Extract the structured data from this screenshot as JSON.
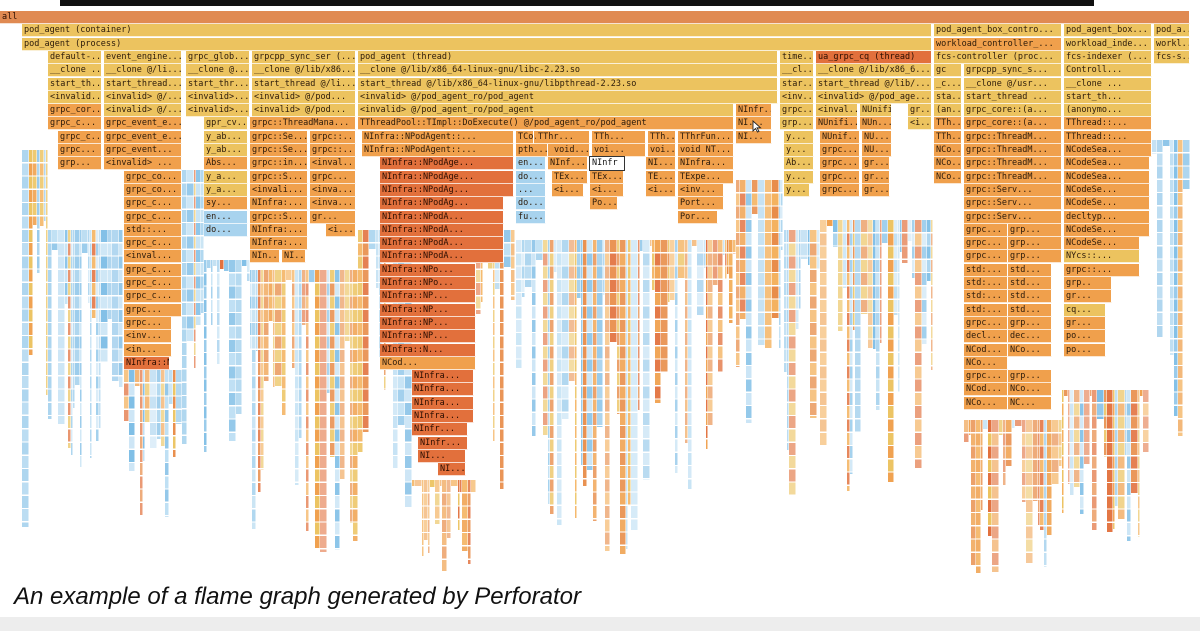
{
  "colors": {
    "root": "#e08a52",
    "orange": "#f0a04c",
    "yellow": "#ecc35f",
    "red": "#e2703c",
    "blue": "#a8d3ee",
    "blue_dark": "#7cbde6",
    "highlight": "#ffffff"
  },
  "flamegraph": {
    "rows": [
      [
        {
          "t": "all",
          "c": "root"
        }
      ],
      [
        {
          "t": "pod_agent (container)",
          "c": "yellow"
        },
        {
          "t": "pod_agent_box_contro...",
          "c": "yellow"
        },
        {
          "t": "pod_agent_box...",
          "c": "yellow"
        },
        {
          "t": "pod_a...",
          "c": "yellow"
        }
      ],
      [
        {
          "t": "pod_agent (process)",
          "c": "yellow"
        },
        {
          "t": "workload_controller_...",
          "c": "orange"
        },
        {
          "t": "workload_inde...",
          "c": "yellow"
        },
        {
          "t": "workl...",
          "c": "yellow"
        }
      ],
      [
        {
          "t": "default-...",
          "c": "yellow"
        },
        {
          "t": "event_engine...",
          "c": "yellow"
        },
        {
          "t": "grpc_glob...",
          "c": "yellow"
        },
        {
          "t": "grpcpp_sync_ser (...",
          "c": "yellow"
        },
        {
          "t": "pod_agent (thread)",
          "c": "yellow"
        },
        {
          "t": "time...",
          "c": "yellow"
        },
        {
          "t": "ua_grpc_cq (thread)",
          "c": "red"
        },
        {
          "t": "fcs-controller (proc...",
          "c": "yellow"
        },
        {
          "t": "fcs-indexer (...",
          "c": "yellow"
        },
        {
          "t": "fcs-s...",
          "c": "yellow"
        }
      ],
      [
        {
          "t": "__clone ...",
          "c": "yellow"
        },
        {
          "t": "__clone @/li...",
          "c": "yellow"
        },
        {
          "t": "__clone @...",
          "c": "yellow"
        },
        {
          "t": "__clone @/lib/x86...",
          "c": "yellow"
        },
        {
          "t": "__clone @/lib/x86_64-linux-gnu/libc-2.23.so",
          "c": "yellow"
        },
        {
          "t": "__cl...",
          "c": "yellow"
        },
        {
          "t": "__clone @/lib/x86_6...",
          "c": "yellow"
        },
        {
          "t": "gc",
          "c": "yellow"
        },
        {
          "t": "grpcpp_sync_s...",
          "c": "yellow"
        },
        {
          "t": "Controll...",
          "c": "yellow"
        }
      ],
      [
        {
          "t": "start_th...",
          "c": "yellow"
        },
        {
          "t": "start_thread...",
          "c": "yellow"
        },
        {
          "t": "start_thr...",
          "c": "yellow"
        },
        {
          "t": "start_thread @/li...",
          "c": "yellow"
        },
        {
          "t": "start_thread @/lib/x86_64-linux-gnu/libpthread-2.23.so",
          "c": "yellow"
        },
        {
          "t": "star...",
          "c": "yellow"
        },
        {
          "t": "start_thread @/lib/...",
          "c": "yellow"
        },
        {
          "t": "_c...",
          "c": "yellow"
        },
        {
          "t": "__clone @/usr...",
          "c": "yellow"
        },
        {
          "t": "__clone ...",
          "c": "yellow"
        }
      ],
      [
        {
          "t": "<invalid...",
          "c": "yellow"
        },
        {
          "t": "<invalid> @/...",
          "c": "yellow"
        },
        {
          "t": "<invalid>...",
          "c": "yellow"
        },
        {
          "t": "<invalid> @/pod...",
          "c": "yellow"
        },
        {
          "t": "<invalid> @/pod_agent_ro/pod_agent",
          "c": "yellow"
        },
        {
          "t": "<inv...",
          "c": "yellow"
        },
        {
          "t": "<invalid> @/pod_age...",
          "c": "yellow"
        },
        {
          "t": "sta...",
          "c": "yellow"
        },
        {
          "t": "start_thread ...",
          "c": "yellow"
        },
        {
          "t": "start_th...",
          "c": "yellow"
        }
      ],
      [
        {
          "t": "grpc_cor...",
          "c": "orange"
        },
        {
          "t": "<invalid> @/...",
          "c": "yellow"
        },
        {
          "t": "<invalid>...",
          "c": "yellow"
        },
        {
          "t": "<invalid> @/pod...",
          "c": "yellow"
        },
        {
          "t": "<invalid> @/pod_agent_ro/pod_agent",
          "c": "yellow"
        },
        {
          "t": "NInfr...",
          "c": "orange"
        },
        {
          "t": "grpc...",
          "c": "yellow"
        },
        {
          "t": "<inval...",
          "c": "yellow"
        },
        {
          "t": "NUnifi...",
          "c": "yellow"
        },
        {
          "t": "gr...",
          "c": "yellow"
        },
        {
          "t": "(an...",
          "c": "yellow"
        },
        {
          "t": "grpc_core::(a...",
          "c": "yellow"
        },
        {
          "t": "(anonymo...",
          "c": "yellow"
        }
      ],
      [
        {
          "t": "grpc_c...",
          "c": "orange"
        },
        {
          "t": "grpc_event_e...",
          "c": "orange"
        },
        {
          "t": "gpr_cv...",
          "c": "yellow"
        },
        {
          "t": "grpc::ThreadMana...",
          "c": "orange"
        },
        {
          "t": "TThreadPool::TImpl::DoExecute() @/pod_agent_ro/pod_agent",
          "c": "orange"
        },
        {
          "t": "NI...",
          "c": "orange"
        },
        {
          "t": "grp...",
          "c": "yellow"
        },
        {
          "t": "NUnifi...",
          "c": "orange"
        },
        {
          "t": "NUn...",
          "c": "orange"
        },
        {
          "t": "<i...",
          "c": "yellow"
        },
        {
          "t": "TTh...",
          "c": "orange"
        },
        {
          "t": "grpc_core::(a...",
          "c": "orange"
        },
        {
          "t": "TThread::...",
          "c": "orange"
        }
      ],
      [
        {
          "t": "grpc_c...",
          "c": "orange"
        },
        {
          "t": "grpc_event_e...",
          "c": "orange"
        },
        {
          "t": "y_ab...",
          "c": "yellow"
        },
        {
          "t": "grpc::Se...",
          "c": "orange"
        },
        {
          "t": "grpc::...",
          "c": "orange"
        },
        {
          "t": "NInfra::NPodAgent::...",
          "c": "orange"
        },
        {
          "t": "NIn...",
          "c": "orange"
        },
        {
          "t": "TCo...",
          "c": "orange"
        },
        {
          "t": "TThr...",
          "c": "orange"
        },
        {
          "t": "TTh...",
          "c": "orange"
        },
        {
          "t": "TTh...",
          "c": "orange"
        },
        {
          "t": "TThrFun...",
          "c": "orange"
        },
        {
          "t": "NI...",
          "c": "orange"
        },
        {
          "t": "y...",
          "c": "yellow"
        },
        {
          "t": "NUnif...",
          "c": "orange"
        },
        {
          "t": "NU...",
          "c": "orange"
        },
        {
          "t": "TTh...",
          "c": "orange"
        },
        {
          "t": "grpc::ThreadM...",
          "c": "orange"
        },
        {
          "t": "TThread::...",
          "c": "orange"
        }
      ],
      [
        {
          "t": "grpc...",
          "c": "orange"
        },
        {
          "t": "grpc_event...",
          "c": "orange"
        },
        {
          "t": "y_ab...",
          "c": "yellow"
        },
        {
          "t": "grpc::Se...",
          "c": "orange"
        },
        {
          "t": "grpc::...",
          "c": "orange"
        },
        {
          "t": "NInfra::NPodAgent::...",
          "c": "orange"
        },
        {
          "t": "NIn...",
          "c": "orange"
        },
        {
          "t": "pth...",
          "c": "orange"
        },
        {
          "t": "void...",
          "c": "orange"
        },
        {
          "t": "voi...",
          "c": "orange"
        },
        {
          "t": "voi...",
          "c": "orange"
        },
        {
          "t": "void NT...",
          "c": "orange"
        },
        {
          "t": "y...",
          "c": "yellow"
        },
        {
          "t": "grpc...",
          "c": "orange"
        },
        {
          "t": "NU...",
          "c": "orange"
        },
        {
          "t": "NCo...",
          "c": "orange"
        },
        {
          "t": "grpc::ThreadM...",
          "c": "orange"
        },
        {
          "t": "NCodeSea...",
          "c": "orange"
        }
      ],
      [
        {
          "t": "grp...",
          "c": "orange"
        },
        {
          "t": "<invalid> ...",
          "c": "orange"
        },
        {
          "t": "Abs...",
          "c": "orange"
        },
        {
          "t": "grpc::in...",
          "c": "orange"
        },
        {
          "t": "<inval...",
          "c": "orange"
        },
        {
          "t": "NInfra::NPodAge...",
          "c": "red"
        },
        {
          "t": "en...",
          "c": "blue"
        },
        {
          "t": "NInf...",
          "c": "orange"
        },
        {
          "t": "NInfr",
          "c": "highlight"
        },
        {
          "t": "NI...",
          "c": "orange"
        },
        {
          "t": "NInfra...",
          "c": "orange"
        },
        {
          "t": "Ab...",
          "c": "yellow"
        },
        {
          "t": "grpc...",
          "c": "orange"
        },
        {
          "t": "gr...",
          "c": "orange"
        },
        {
          "t": "NCo...",
          "c": "orange"
        },
        {
          "t": "grpc::ThreadM...",
          "c": "orange"
        },
        {
          "t": "NCodeSea...",
          "c": "orange"
        }
      ],
      [
        {
          "t": "grpc_co...",
          "c": "orange"
        },
        {
          "t": "y_a...",
          "c": "yellow"
        },
        {
          "t": "grpc::S...",
          "c": "orange"
        },
        {
          "t": "grpc...",
          "c": "orange"
        },
        {
          "t": "NInfra::NPodAge...",
          "c": "red"
        },
        {
          "t": "do...",
          "c": "blue"
        },
        {
          "t": "TEx...",
          "c": "orange"
        },
        {
          "t": "TEx...",
          "c": "orange"
        },
        {
          "t": "TE...",
          "c": "orange"
        },
        {
          "t": "TExpe...",
          "c": "orange"
        },
        {
          "t": "y...",
          "c": "yellow"
        },
        {
          "t": "grpc...",
          "c": "orange"
        },
        {
          "t": "gr...",
          "c": "orange"
        },
        {
          "t": "NCo...",
          "c": "orange"
        },
        {
          "t": "grpc::ThreadM...",
          "c": "orange"
        },
        {
          "t": "NCodeSea...",
          "c": "orange"
        }
      ],
      [
        {
          "t": "grpc_co...",
          "c": "orange"
        },
        {
          "t": "y_a...",
          "c": "yellow"
        },
        {
          "t": "<invali...",
          "c": "orange"
        },
        {
          "t": "<inva...",
          "c": "orange"
        },
        {
          "t": "NInfra::NPodAg...",
          "c": "red"
        },
        {
          "t": "...",
          "c": "blue"
        },
        {
          "t": "<i...",
          "c": "orange"
        },
        {
          "t": "<i...",
          "c": "orange"
        },
        {
          "t": "<i...",
          "c": "orange"
        },
        {
          "t": "<inv...",
          "c": "orange"
        },
        {
          "t": "y...",
          "c": "yellow"
        },
        {
          "t": "grpc...",
          "c": "orange"
        },
        {
          "t": "gr...",
          "c": "orange"
        },
        {
          "t": "grpc::Serv...",
          "c": "orange"
        },
        {
          "t": "NCodeSe...",
          "c": "orange"
        }
      ],
      [
        {
          "t": "grpc_c...",
          "c": "orange"
        },
        {
          "t": "sy...",
          "c": "orange"
        },
        {
          "t": "NInfra:...",
          "c": "orange"
        },
        {
          "t": "<inva...",
          "c": "orange"
        },
        {
          "t": "NInfra::NPodAg...",
          "c": "red"
        },
        {
          "t": "do...",
          "c": "blue"
        },
        {
          "t": "Po...",
          "c": "orange"
        },
        {
          "t": "Port...",
          "c": "orange"
        },
        {
          "t": "grpc::Serv...",
          "c": "orange"
        },
        {
          "t": "NCodeSe...",
          "c": "orange"
        }
      ],
      [
        {
          "t": "grpc_c...",
          "c": "orange"
        },
        {
          "t": "en...",
          "c": "blue"
        },
        {
          "t": "grpc::S...",
          "c": "orange"
        },
        {
          "t": "gr...",
          "c": "orange"
        },
        {
          "t": "NInfra::NPodA...",
          "c": "red"
        },
        {
          "t": "fu...",
          "c": "blue"
        },
        {
          "t": "Por...",
          "c": "orange"
        },
        {
          "t": "grpc::Serv...",
          "c": "orange"
        },
        {
          "t": "decltyp...",
          "c": "orange"
        }
      ],
      [
        {
          "t": "std::...",
          "c": "orange"
        },
        {
          "t": "do...",
          "c": "blue"
        },
        {
          "t": "NInfra:...",
          "c": "orange"
        },
        {
          "t": "<i...",
          "c": "orange"
        },
        {
          "t": "NInfra::NPodA...",
          "c": "red"
        },
        {
          "t": "grpc...",
          "c": "orange"
        },
        {
          "t": "grp...",
          "c": "orange"
        },
        {
          "t": "NCodeSe...",
          "c": "orange"
        }
      ],
      [
        {
          "t": "grpc_c...",
          "c": "orange"
        },
        {
          "t": "NInfra:...",
          "c": "orange"
        },
        {
          "t": "NInfra::NPodA...",
          "c": "red"
        },
        {
          "t": "grpc...",
          "c": "orange"
        },
        {
          "t": "grp...",
          "c": "orange"
        },
        {
          "t": "NCodeSe...",
          "c": "orange"
        }
      ],
      [
        {
          "t": "<inval...",
          "c": "orange"
        },
        {
          "t": "NIn...",
          "c": "orange"
        },
        {
          "t": "NI...",
          "c": "orange"
        },
        {
          "t": "NInfra::NPodA...",
          "c": "red"
        },
        {
          "t": "grpc...",
          "c": "orange"
        },
        {
          "t": "grp...",
          "c": "orange"
        },
        {
          "t": "NYcs::...",
          "c": "yellow"
        }
      ],
      [
        {
          "t": "grpc_c...",
          "c": "orange"
        },
        {
          "t": "NInfra::NPo...",
          "c": "red"
        },
        {
          "t": "std:...",
          "c": "orange"
        },
        {
          "t": "std...",
          "c": "orange"
        },
        {
          "t": "grpc::...",
          "c": "orange"
        }
      ],
      [
        {
          "t": "grpc_c...",
          "c": "orange"
        },
        {
          "t": "NInfra::NPo...",
          "c": "red"
        },
        {
          "t": "std:...",
          "c": "orange"
        },
        {
          "t": "std...",
          "c": "orange"
        },
        {
          "t": "grp..",
          "c": "orange"
        }
      ],
      [
        {
          "t": "grpc_c...",
          "c": "orange"
        },
        {
          "t": "NInfra::NP...",
          "c": "red"
        },
        {
          "t": "std:...",
          "c": "orange"
        },
        {
          "t": "std...",
          "c": "orange"
        },
        {
          "t": "gr...",
          "c": "orange"
        }
      ],
      [
        {
          "t": "grpc...",
          "c": "orange"
        },
        {
          "t": "NInfra::NP...",
          "c": "red"
        },
        {
          "t": "std:...",
          "c": "orange"
        },
        {
          "t": "std...",
          "c": "orange"
        },
        {
          "t": "cq...",
          "c": "yellow"
        }
      ],
      [
        {
          "t": "grpc...",
          "c": "orange"
        },
        {
          "t": "NInfra::NP...",
          "c": "red"
        },
        {
          "t": "grpc...",
          "c": "orange"
        },
        {
          "t": "grp...",
          "c": "orange"
        },
        {
          "t": "gr...",
          "c": "orange"
        }
      ],
      [
        {
          "t": "<inv...",
          "c": "orange"
        },
        {
          "t": "NInfra::NP...",
          "c": "red"
        },
        {
          "t": "decl...",
          "c": "orange"
        },
        {
          "t": "dec...",
          "c": "orange"
        },
        {
          "t": "po...",
          "c": "orange"
        }
      ],
      [
        {
          "t": "<in...",
          "c": "orange"
        },
        {
          "t": "NInfra::N...",
          "c": "red"
        },
        {
          "t": "NCod...",
          "c": "orange"
        },
        {
          "t": "NCo...",
          "c": "orange"
        },
        {
          "t": "po...",
          "c": "orange"
        }
      ],
      [
        {
          "t": "NInfra::N...",
          "c": "red"
        },
        {
          "t": "NCod...",
          "c": "orange"
        },
        {
          "t": "NCo...",
          "c": "orange"
        }
      ],
      [
        {
          "t": "NInfra...",
          "c": "red"
        },
        {
          "t": "grpc...",
          "c": "orange"
        },
        {
          "t": "grp...",
          "c": "orange"
        }
      ],
      [
        {
          "t": "NInfra...",
          "c": "red"
        },
        {
          "t": "NCod...",
          "c": "orange"
        },
        {
          "t": "NCo...",
          "c": "orange"
        }
      ],
      [
        {
          "t": "NInfra...",
          "c": "red"
        },
        {
          "t": "NCo...",
          "c": "orange"
        },
        {
          "t": "NC...",
          "c": "orange"
        }
      ],
      [
        {
          "t": "NInfra...",
          "c": "red"
        }
      ],
      [
        {
          "t": "NInfr...",
          "c": "red"
        }
      ],
      [
        {
          "t": "NInfr...",
          "c": "red"
        }
      ],
      [
        {
          "t": "NI...",
          "c": "red"
        }
      ],
      [
        {
          "t": "NI...",
          "c": "red"
        }
      ]
    ]
  },
  "caption": "An example of a flame graph generated by Perforator"
}
